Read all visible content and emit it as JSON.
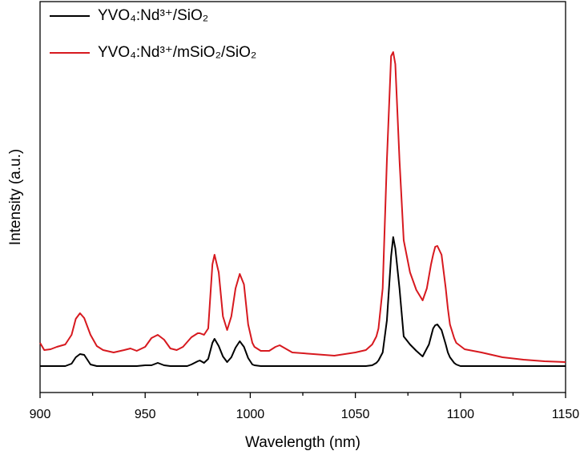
{
  "chart_data": {
    "type": "line",
    "xlabel": "Wavelength (nm)",
    "ylabel": "Intensity (a.u.)",
    "x": [
      900,
      902,
      905,
      908,
      912,
      915,
      917,
      919,
      921,
      924,
      927,
      930,
      935,
      940,
      943,
      946,
      950,
      953,
      956,
      959,
      962,
      965,
      968,
      970,
      972,
      975,
      976,
      978,
      980,
      982,
      983,
      985,
      987,
      989,
      991,
      993,
      995,
      997,
      999,
      1001,
      1002,
      1005,
      1009,
      1012,
      1014,
      1016,
      1020,
      1030,
      1040,
      1050,
      1055,
      1058,
      1060,
      1061,
      1063,
      1065,
      1067,
      1068,
      1069,
      1071,
      1073,
      1076,
      1079,
      1082,
      1084,
      1085,
      1086,
      1087,
      1088,
      1089,
      1091,
      1093,
      1094,
      1095,
      1097,
      1098,
      1100,
      1102,
      1110,
      1120,
      1130,
      1140,
      1150
    ],
    "series": [
      {
        "name": "YVO₄:Nd³⁺/SiO₂",
        "color": "#000000",
        "values": [
          33,
          33,
          33,
          33,
          33,
          36,
          44,
          48,
          47,
          35,
          33,
          33,
          33,
          33,
          33,
          33,
          34,
          34,
          37,
          34,
          33,
          33,
          33,
          33,
          35,
          39,
          40,
          37,
          42,
          62,
          67,
          58,
          45,
          38,
          44,
          56,
          64,
          57,
          43,
          35,
          34,
          33,
          33,
          33,
          33,
          33,
          33,
          33,
          33,
          33,
          33,
          34,
          37,
          40,
          50,
          90,
          170,
          194,
          180,
          130,
          70,
          60,
          52,
          45,
          55,
          60,
          70,
          80,
          84,
          85,
          78,
          60,
          50,
          44,
          37,
          35,
          33,
          33,
          33,
          33,
          33,
          33,
          33
        ]
      },
      {
        "name": "YVO₄:Nd³⁺/mSiO₂/SiO₂",
        "color": "#d7191f",
        "values": [
          62,
          53,
          54,
          57,
          60,
          72,
          92,
          99,
          93,
          72,
          58,
          53,
          50,
          53,
          55,
          52,
          57,
          68,
          72,
          66,
          55,
          53,
          57,
          63,
          69,
          74,
          74,
          72,
          80,
          160,
          172,
          150,
          95,
          78,
          95,
          130,
          148,
          135,
          85,
          62,
          57,
          52,
          52,
          57,
          59,
          56,
          50,
          48,
          46,
          50,
          53,
          60,
          70,
          80,
          130,
          290,
          420,
          425,
          410,
          290,
          190,
          150,
          128,
          115,
          130,
          145,
          160,
          172,
          182,
          183,
          172,
          130,
          105,
          85,
          68,
          62,
          58,
          54,
          50,
          44,
          41,
          39,
          38
        ]
      }
    ],
    "xlim": [
      900,
      1150
    ],
    "xticks": [
      900,
      950,
      1000,
      1050,
      1100,
      1150
    ],
    "ylim": [
      0,
      488
    ],
    "legend": "upper left"
  }
}
